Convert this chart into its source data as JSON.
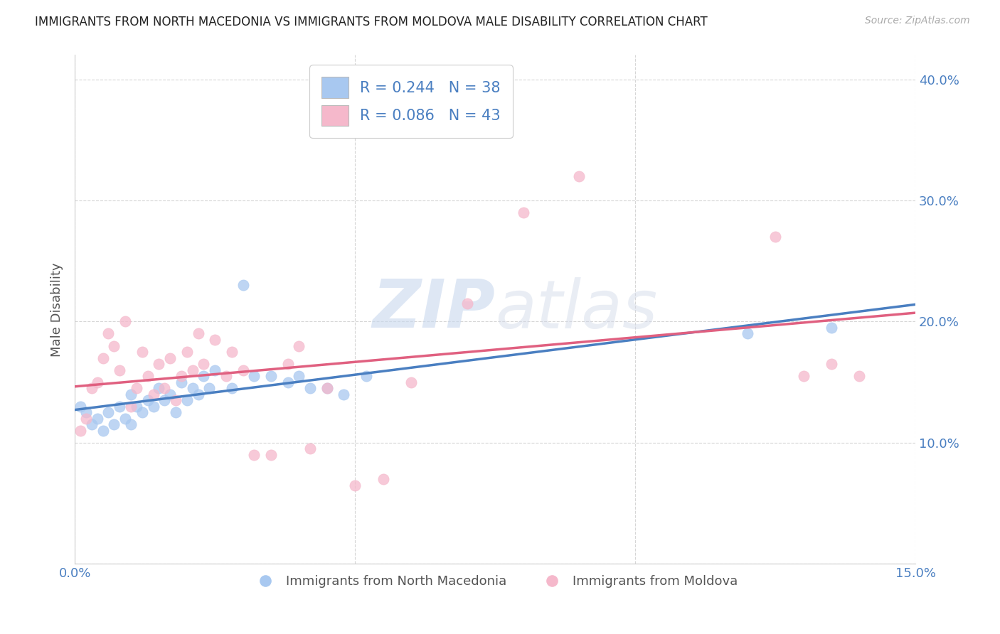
{
  "title": "IMMIGRANTS FROM NORTH MACEDONIA VS IMMIGRANTS FROM MOLDOVA MALE DISABILITY CORRELATION CHART",
  "source": "Source: ZipAtlas.com",
  "ylabel": "Male Disability",
  "xlabel": "",
  "xlim": [
    0.0,
    0.15
  ],
  "ylim": [
    0.0,
    0.42
  ],
  "xticks": [
    0.0,
    0.05,
    0.1,
    0.15
  ],
  "xticklabels": [
    "0.0%",
    "",
    "",
    "15.0%"
  ],
  "yticks": [
    0.0,
    0.1,
    0.2,
    0.3,
    0.4
  ],
  "yticklabels_right": [
    "",
    "10.0%",
    "20.0%",
    "30.0%",
    "40.0%"
  ],
  "series1_color": "#a8c8f0",
  "series2_color": "#f5b8cb",
  "series1_line_color": "#4a7fc1",
  "series2_line_color": "#e06080",
  "series1_label": "Immigrants from North Macedonia",
  "series2_label": "Immigrants from Moldova",
  "series1_R": 0.244,
  "series1_N": 38,
  "series2_R": 0.086,
  "series2_N": 43,
  "watermark_zip": "ZIP",
  "watermark_atlas": "atlas",
  "background_color": "#ffffff",
  "grid_color": "#cccccc",
  "title_color": "#222222",
  "axis_color": "#555555",
  "tick_color": "#4a7fc1",
  "legend_text_color": "#4a7fc1",
  "series1_x": [
    0.001,
    0.002,
    0.003,
    0.004,
    0.005,
    0.006,
    0.007,
    0.008,
    0.009,
    0.01,
    0.01,
    0.011,
    0.012,
    0.013,
    0.014,
    0.015,
    0.016,
    0.017,
    0.018,
    0.019,
    0.02,
    0.021,
    0.022,
    0.023,
    0.024,
    0.025,
    0.028,
    0.03,
    0.032,
    0.035,
    0.038,
    0.04,
    0.042,
    0.045,
    0.048,
    0.052,
    0.12,
    0.135
  ],
  "series1_y": [
    0.13,
    0.125,
    0.115,
    0.12,
    0.11,
    0.125,
    0.115,
    0.13,
    0.12,
    0.14,
    0.115,
    0.13,
    0.125,
    0.135,
    0.13,
    0.145,
    0.135,
    0.14,
    0.125,
    0.15,
    0.135,
    0.145,
    0.14,
    0.155,
    0.145,
    0.16,
    0.145,
    0.23,
    0.155,
    0.155,
    0.15,
    0.155,
    0.145,
    0.145,
    0.14,
    0.155,
    0.19,
    0.195
  ],
  "series2_x": [
    0.001,
    0.002,
    0.003,
    0.004,
    0.005,
    0.006,
    0.007,
    0.008,
    0.009,
    0.01,
    0.011,
    0.012,
    0.013,
    0.014,
    0.015,
    0.016,
    0.017,
    0.018,
    0.019,
    0.02,
    0.021,
    0.022,
    0.023,
    0.025,
    0.027,
    0.028,
    0.03,
    0.032,
    0.035,
    0.038,
    0.04,
    0.042,
    0.045,
    0.05,
    0.055,
    0.06,
    0.07,
    0.08,
    0.09,
    0.125,
    0.13,
    0.135,
    0.14
  ],
  "series2_y": [
    0.11,
    0.12,
    0.145,
    0.15,
    0.17,
    0.19,
    0.18,
    0.16,
    0.2,
    0.13,
    0.145,
    0.175,
    0.155,
    0.14,
    0.165,
    0.145,
    0.17,
    0.135,
    0.155,
    0.175,
    0.16,
    0.19,
    0.165,
    0.185,
    0.155,
    0.175,
    0.16,
    0.09,
    0.09,
    0.165,
    0.18,
    0.095,
    0.145,
    0.065,
    0.07,
    0.15,
    0.215,
    0.29,
    0.32,
    0.27,
    0.155,
    0.165,
    0.155
  ]
}
